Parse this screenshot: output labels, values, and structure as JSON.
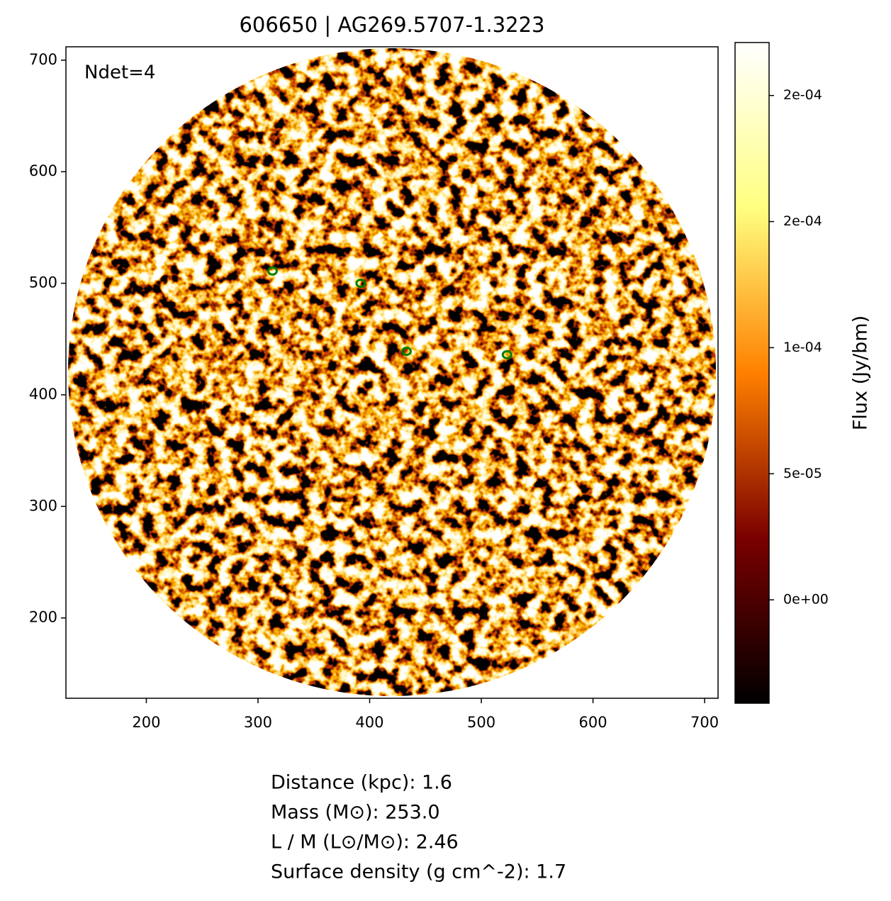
{
  "chart_data": {
    "type": "image",
    "title": "606650 | AG269.5707-1.3223",
    "annotation": "Ndet=4",
    "xlim": [
      128,
      712
    ],
    "ylim": [
      128,
      712
    ],
    "xticks": [
      200,
      300,
      400,
      500,
      600,
      700
    ],
    "yticks": [
      200,
      300,
      400,
      500,
      600,
      700
    ],
    "series": [
      {
        "color": "#008000",
        "x": [
          313,
          392,
          433,
          523
        ],
        "values": [
          511,
          500,
          439,
          436
        ]
      }
    ],
    "colorbar": {
      "label": "Flux (Jy/bm)",
      "lim": [
        -4.1e-05,
        0.000221
      ],
      "ticks": [
        {
          "value": 0.0002,
          "label": "2e-04"
        },
        {
          "value": 0.00015,
          "label": "2e-04"
        },
        {
          "value": 0.0001,
          "label": "1e-04"
        },
        {
          "value": 5e-05,
          "label": "5e-05"
        },
        {
          "value": 0,
          "label": "0e+00"
        }
      ]
    },
    "notes": [
      "Distance (kpc): 1.6",
      "Mass (M⊙): 253.0",
      "L / M (L⊙/M⊙): 2.46",
      "Surface density (g cm^-2): 1.7"
    ]
  }
}
